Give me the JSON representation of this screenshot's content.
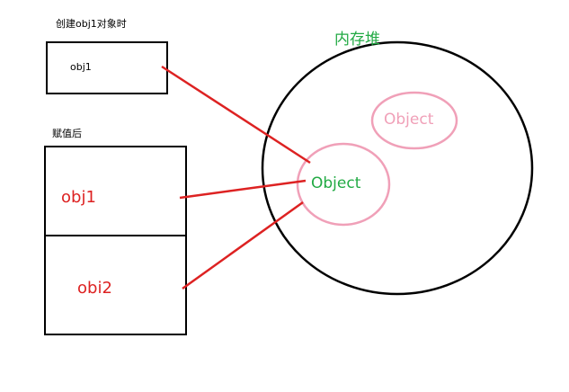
{
  "captions": {
    "create": "创建obj1对象时",
    "assign": "赋值后"
  },
  "heap": {
    "title": "内存堆"
  },
  "objects": {
    "secondary": "Object",
    "main": "Object"
  },
  "before": {
    "var": "obj1"
  },
  "after": {
    "var1": "obj1",
    "var2": "obi2"
  },
  "colors": {
    "pointer": "#dd2222",
    "heap_title": "#22aa44",
    "object_outline": "#f0a0b8",
    "object_text_main": "#22aa44",
    "object_text_secondary": "#f0a0b8",
    "var_text": "#dd2222",
    "box_stroke": "#000000"
  }
}
